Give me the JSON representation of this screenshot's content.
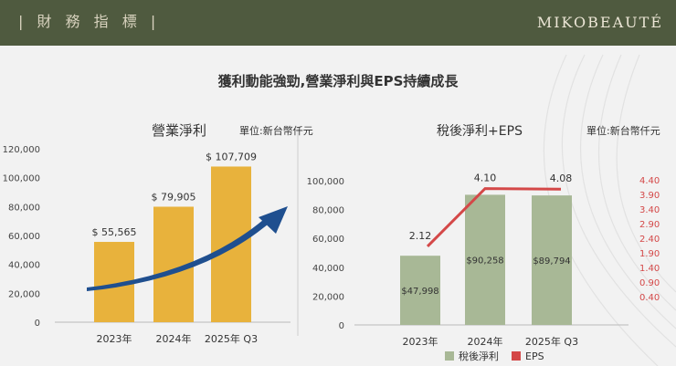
{
  "header": {
    "title": "| 財 務 指 標 |",
    "logo": "MIKOBEAUTÉ"
  },
  "headline": "獲利動能強勁,營業淨利與EPS持續成長",
  "colors": {
    "header_bg": "#4f5a3f",
    "bar_gold": "#e8b23c",
    "bar_green": "#a8b896",
    "eps_red": "#d44848",
    "arrow_blue": "#1f4f8f"
  },
  "chart_data": [
    {
      "type": "bar",
      "title": "營業淨利",
      "unit": "單位:新台幣仟元",
      "categories": [
        "2023年",
        "2024年",
        "2025年  Q3"
      ],
      "values": [
        55565,
        79905,
        107709
      ],
      "value_labels": [
        "$ 55,565",
        "$ 79,905",
        "$ 107,709"
      ],
      "ylim": [
        0,
        120000
      ],
      "yticks": [
        "0",
        "20,000",
        "40,000",
        "60,000",
        "80,000",
        "100,000",
        "120,000"
      ],
      "ytick_values": [
        0,
        20000,
        40000,
        60000,
        80000,
        100000,
        120000
      ]
    },
    {
      "type": "bar+line",
      "title": "稅後淨利+EPS",
      "unit": "單位:新台幣仟元",
      "categories": [
        "2023年",
        "2024年",
        "2025年  Q3"
      ],
      "ylim": [
        0,
        100000
      ],
      "yticks": [
        "0",
        "20,000",
        "40,000",
        "60,000",
        "80,000",
        "100,000"
      ],
      "ytick_values": [
        0,
        20000,
        40000,
        60000,
        80000,
        100000
      ],
      "y2lim": [
        0.4,
        4.4
      ],
      "y2ticks": [
        "0.40",
        "0.90",
        "1.40",
        "1.90",
        "2.40",
        "2.90",
        "3.40",
        "3.90",
        "4.40"
      ],
      "y2tick_values": [
        0.4,
        0.9,
        1.4,
        1.9,
        2.4,
        2.9,
        3.4,
        3.9,
        4.4
      ],
      "series": [
        {
          "name": "稅後淨利",
          "type": "bar",
          "values": [
            47998,
            90258,
            89794
          ],
          "value_labels": [
            "$47,998",
            "$90,258",
            "$89,794"
          ]
        },
        {
          "name": "EPS",
          "type": "line",
          "values": [
            2.12,
            4.1,
            4.08
          ],
          "value_labels": [
            "2.12",
            "4.10",
            "4.08"
          ]
        }
      ],
      "legend_position": "bottom"
    }
  ]
}
